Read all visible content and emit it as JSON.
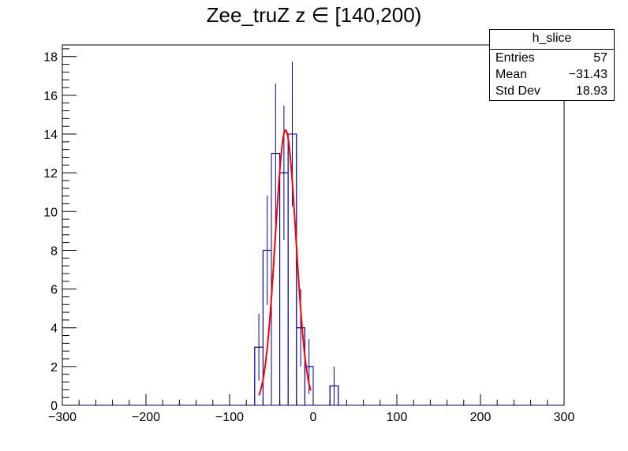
{
  "title": "Zee_truZ z  ∈ [140,200)",
  "stats": {
    "name": "h_slice",
    "rows": [
      {
        "label": "Entries",
        "value": "57"
      },
      {
        "label": "Mean",
        "value": "−31.43"
      },
      {
        "label": "Std Dev",
        "value": "18.93"
      }
    ]
  },
  "colors": {
    "histogram": "#000099",
    "fit": "#ff0000",
    "axis": "#000000"
  },
  "chart_data": {
    "type": "bar",
    "subtype": "histogram-with-gaussian-fit",
    "xlim": [
      -300,
      300
    ],
    "ylim": [
      0,
      18.6
    ],
    "bin_width": 10,
    "xticks": [
      -300,
      -200,
      -100,
      0,
      100,
      200,
      300
    ],
    "xtick_labels": [
      "−300",
      "−200",
      "−100",
      "0",
      "100",
      "200",
      "300"
    ],
    "yticks": [
      0,
      2,
      4,
      6,
      8,
      10,
      12,
      14,
      16,
      18
    ],
    "ytick_labels": [
      "0",
      "2",
      "4",
      "6",
      "8",
      "10",
      "12",
      "14",
      "16",
      "18"
    ],
    "bins": [
      {
        "x_low": -70,
        "x_high": -60,
        "value": 3
      },
      {
        "x_low": -60,
        "x_high": -50,
        "value": 8
      },
      {
        "x_low": -50,
        "x_high": -40,
        "value": 13
      },
      {
        "x_low": -40,
        "x_high": -30,
        "value": 12
      },
      {
        "x_low": -30,
        "x_high": -20,
        "value": 14
      },
      {
        "x_low": -20,
        "x_high": -10,
        "value": 4
      },
      {
        "x_low": -10,
        "x_high": 0,
        "value": 2
      },
      {
        "x_low": 20,
        "x_high": 30,
        "value": 1
      }
    ],
    "fit": {
      "function": "gaussian",
      "amplitude": 14.2,
      "mean": -33,
      "sigma": 12.4,
      "x_range": [
        -65,
        -3
      ]
    }
  }
}
